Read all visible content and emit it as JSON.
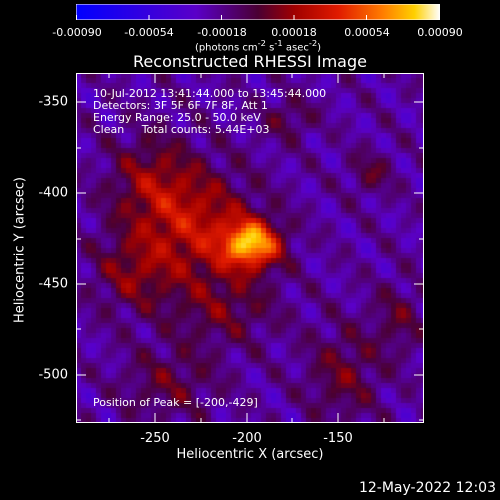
{
  "chart_data": {
    "type": "heatmap",
    "title": "Reconstructed RHESSI Image",
    "xlabel": "Heliocentric X (arcsec)",
    "ylabel": "Heliocentric Y (arcsec)",
    "xlim": [
      -296,
      -106
    ],
    "ylim": [
      -527,
      -335
    ],
    "xticks": [
      -250,
      -200,
      -150
    ],
    "yticks": [
      -350,
      -400,
      -450,
      -500
    ],
    "colorbar": {
      "range": [
        -0.0009,
        0.0009
      ],
      "ticks": [
        "-0.00090",
        "-0.00054",
        "-0.00018",
        "0.00018",
        "0.00054",
        "0.00090"
      ],
      "label_html": "(photons cm<sup>-2</sup> s<sup>-1</sup> asec<sup>-2</sup>)"
    },
    "annotations": {
      "time": "10-Jul-2012 13:41:44.000 to 13:45:44.000",
      "detectors": "Detectors: 3F 5F 6F 7F 8F, Att 1",
      "energy": "Energy Range: 25.0 - 50.0 keV",
      "clean": "Clean     Total counts: 5.44E+03",
      "peak": "Position of Peak = [-200,-429]"
    },
    "peak": {
      "x": -200,
      "y": -429
    },
    "sources": [
      {
        "x": -200,
        "y": -429,
        "amp": 0.00088,
        "sx": 11,
        "sy": 9
      },
      {
        "x": -230,
        "y": -420,
        "amp": 0.00045,
        "sx": 22,
        "sy": 22
      },
      {
        "x": -255,
        "y": -395,
        "amp": 0.0003,
        "sx": 16,
        "sy": 18
      },
      {
        "x": -265,
        "y": -445,
        "amp": 0.00028,
        "sx": 15,
        "sy": 15
      },
      {
        "x": -215,
        "y": -465,
        "amp": 0.00022,
        "sx": 20,
        "sy": 14
      },
      {
        "x": -135,
        "y": -390,
        "amp": 0.00022,
        "sx": 8,
        "sy": 8
      },
      {
        "x": -180,
        "y": -360,
        "amp": 0.0002,
        "sx": 10,
        "sy": 8
      },
      {
        "x": -150,
        "y": -500,
        "amp": 0.00025,
        "sx": 14,
        "sy": 18
      },
      {
        "x": -245,
        "y": -505,
        "amp": 0.00022,
        "sx": 18,
        "sy": 14
      },
      {
        "x": -120,
        "y": -470,
        "amp": 0.0002,
        "sx": 10,
        "sy": 14
      }
    ],
    "background": -0.00022
  },
  "footer": {
    "timestamp": "12-May-2022 12:03"
  }
}
